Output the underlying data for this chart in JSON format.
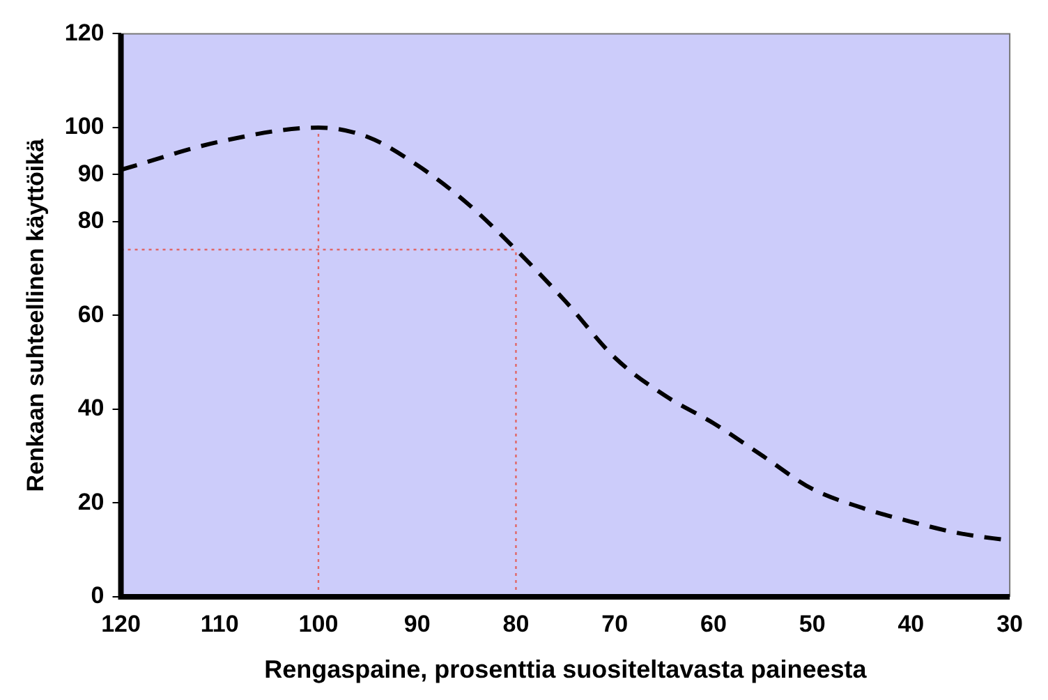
{
  "chart_data": {
    "type": "line",
    "xlabel": "Rengaspaine, prosenttia suositeltavasta paineesta",
    "ylabel": "Renkaan suhteellinen käyttöikä",
    "x": [
      120,
      110,
      100,
      95,
      90,
      85,
      80,
      75,
      70,
      65,
      60,
      55,
      50,
      45,
      40,
      35,
      30
    ],
    "series": [
      {
        "color": "#000000",
        "values": [
          91,
          97,
          100,
          98,
          92,
          84,
          74,
          63,
          51,
          43,
          37,
          30,
          23,
          19,
          16,
          13.5,
          12
        ]
      }
    ],
    "xlim": [
      120,
      30
    ],
    "xticks": [
      120,
      110,
      100,
      90,
      80,
      70,
      60,
      50,
      40,
      30
    ],
    "ylim": [
      0,
      120
    ],
    "yticks": [
      0,
      20,
      40,
      60,
      80,
      90,
      100,
      120
    ],
    "grid": false,
    "legend": false,
    "marker": "none",
    "line_style": "dashed",
    "ref_lines": [
      {
        "axis": "x",
        "value": 100,
        "color": "#e06666",
        "line_style": "dotted"
      },
      {
        "axis": "x",
        "value": 80,
        "color": "#e06666",
        "line_style": "dotted"
      },
      {
        "axis": "y",
        "value": 74,
        "color": "#e06666",
        "line_style": "dotted"
      }
    ]
  }
}
